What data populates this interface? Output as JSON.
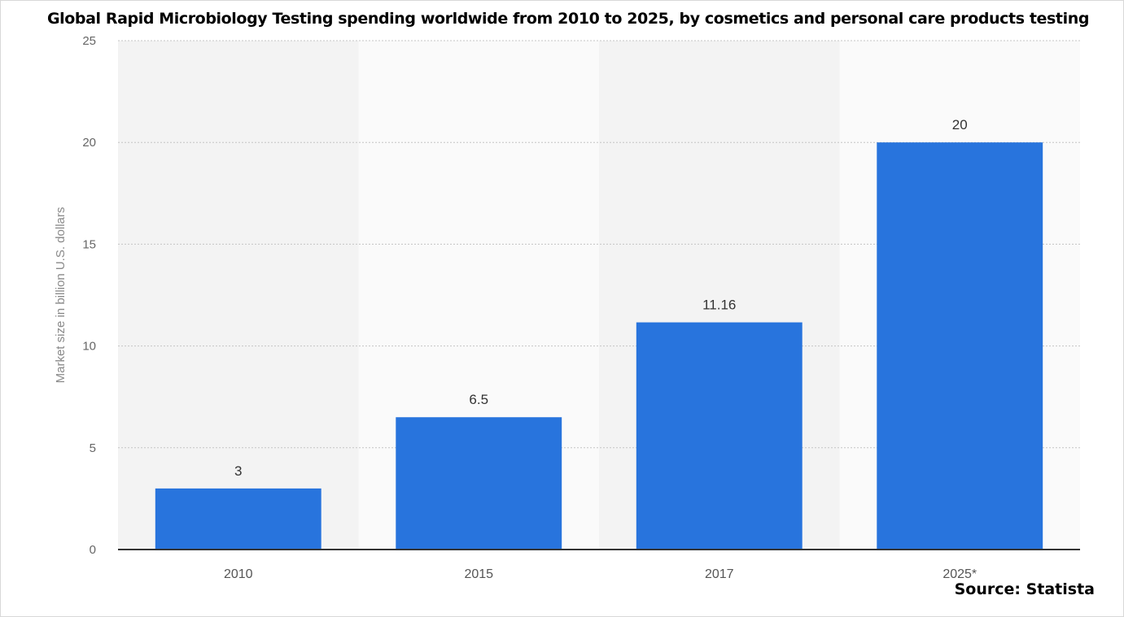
{
  "title": "Global Rapid Microbiology Testing spending worldwide from 2010 to 2025, by cosmetics and personal care products testing",
  "source": "Source: Statista",
  "chart_data": {
    "type": "bar",
    "title": "Global Rapid Microbiology Testing spending worldwide from 2010 to 2025, by cosmetics and personal care products testing",
    "xlabel": "",
    "ylabel": "Market size in billion U.S. dollars",
    "categories": [
      "2010",
      "2015",
      "2017",
      "2025*"
    ],
    "values": [
      3,
      6.5,
      11.16,
      20
    ],
    "value_labels": [
      "3",
      "6.5",
      "11.16",
      "20"
    ],
    "ylim": [
      0,
      25
    ],
    "yticks": [
      0,
      5,
      10,
      15,
      20,
      25
    ],
    "grid": true,
    "bar_color": "#2874dd",
    "band_colors": [
      "#f3f3f3",
      "#fafafa"
    ]
  }
}
